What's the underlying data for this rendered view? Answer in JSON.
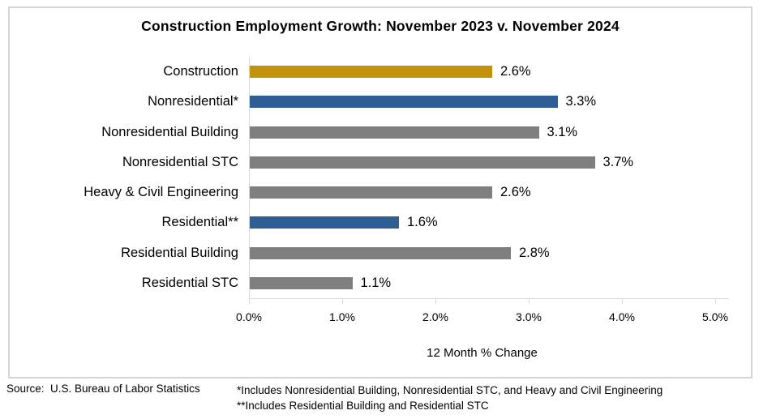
{
  "title": "Construction Employment Growth: November 2023 v. November 2024",
  "chart_data": {
    "type": "bar",
    "orientation": "horizontal",
    "title": "Construction Employment Growth: November 2023 v. November 2024",
    "categories": [
      "Construction",
      "Nonresidential*",
      "Nonresidential Building",
      "Nonresidential STC",
      "Heavy & Civil Engineering",
      "Residential**",
      "Residential Building",
      "Residential STC"
    ],
    "values": [
      2.6,
      3.3,
      3.1,
      3.7,
      2.6,
      1.6,
      2.8,
      1.1
    ],
    "value_labels": [
      "2.6%",
      "3.3%",
      "3.1%",
      "3.7%",
      "2.6%",
      "1.6%",
      "2.8%",
      "1.1%"
    ],
    "bar_colors": [
      "#c1920a",
      "#2f5e94",
      "#7f7f7f",
      "#7f7f7f",
      "#7f7f7f",
      "#2f5e94",
      "#7f7f7f",
      "#7f7f7f"
    ],
    "xlabel": "12 Month % Change",
    "ylabel": "",
    "x_ticks": [
      "0.0%",
      "1.0%",
      "2.0%",
      "3.0%",
      "4.0%",
      "5.0%"
    ],
    "xlim": [
      0,
      5
    ],
    "grid": false,
    "legend": "none"
  },
  "colors": {
    "gold": "#c1920a",
    "blue": "#2f5e94",
    "gray": "#7f7f7f",
    "frame_border": "#d5d5d5",
    "axis_line": "#d9d9d9",
    "text": "#000000"
  },
  "footer": {
    "source": "Source:  U.S. Bureau of Labor Statistics",
    "footnote1": "*Includes Nonresidential Building, Nonresidential STC, and Heavy and Civil Engineering",
    "footnote2": "**Includes Residential Building and Residential STC"
  }
}
